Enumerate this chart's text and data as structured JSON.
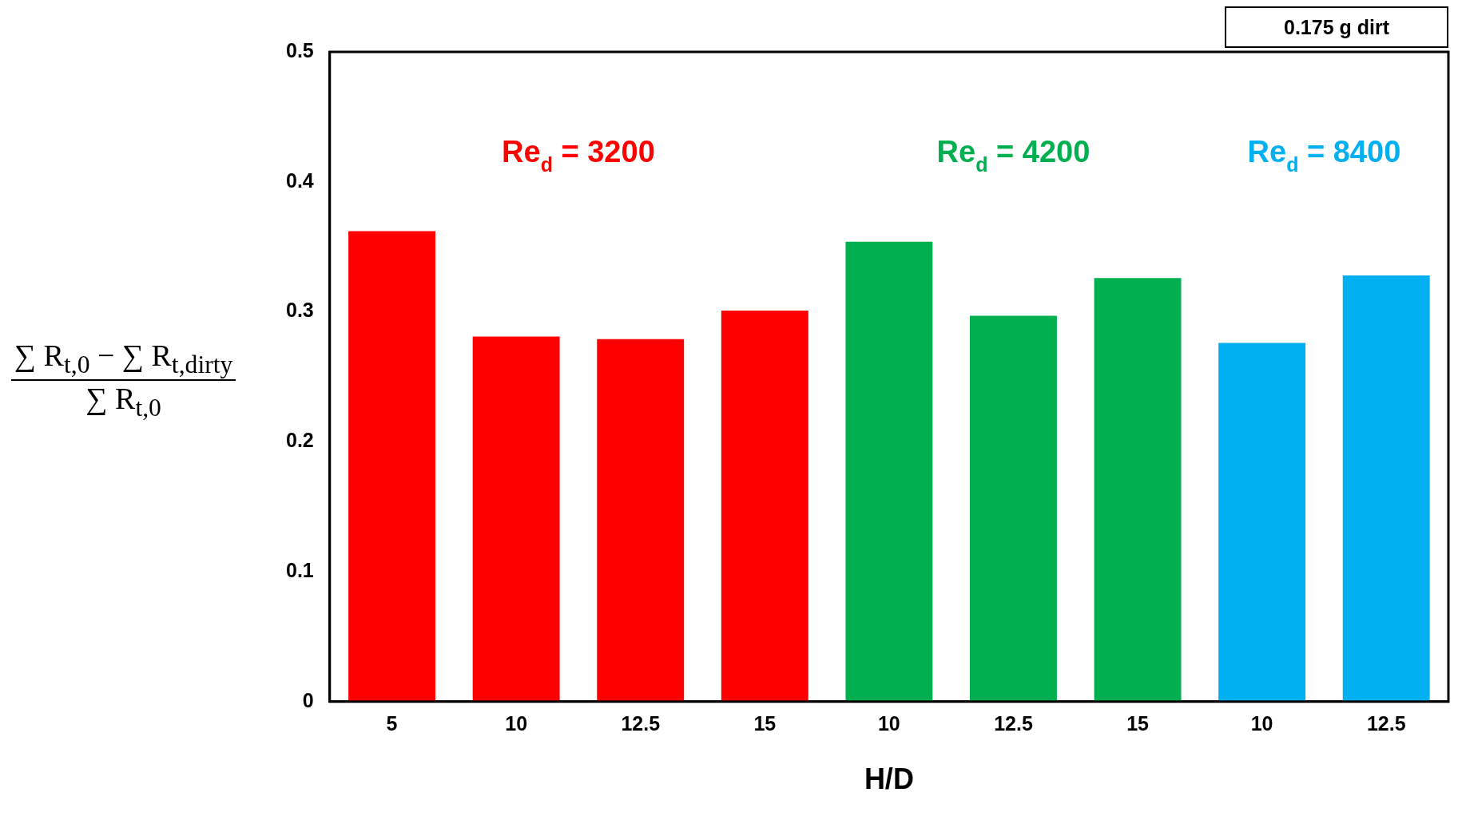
{
  "chart_data": {
    "type": "bar",
    "xlabel": "H/D",
    "ylabel": "∑ R$_{t,0}$ − ∑ R$_{t,dirty}$ ∑ R$_{t,0}$",
    "categories": [
      "5",
      "10",
      "12.5",
      "15",
      "10",
      "12.5",
      "15",
      "10",
      "12.5"
    ],
    "series": [
      {
        "name": "Re$_{d}$ = 3200",
        "color": "#ff0000",
        "values": [
          0.362,
          0.281,
          0.279,
          0.301,
          null,
          null,
          null,
          null,
          null
        ]
      },
      {
        "name": "Re$_{d}$ = 4200",
        "color": "#00b050",
        "values": [
          null,
          null,
          null,
          null,
          0.354,
          0.297,
          0.326,
          null,
          null
        ]
      },
      {
        "name": "Re$_{d}$ = 8400",
        "color": "#00b0f0",
        "values": [
          null,
          null,
          null,
          null,
          null,
          null,
          null,
          0.276,
          0.328
        ]
      }
    ],
    "ylim": [
      0,
      0.5
    ],
    "yticks": [
      0,
      0.1,
      0.2,
      0.3,
      0.4,
      0.5
    ],
    "grid": false,
    "legend": false,
    "annotations": [
      "0.175 g dirt"
    ]
  }
}
